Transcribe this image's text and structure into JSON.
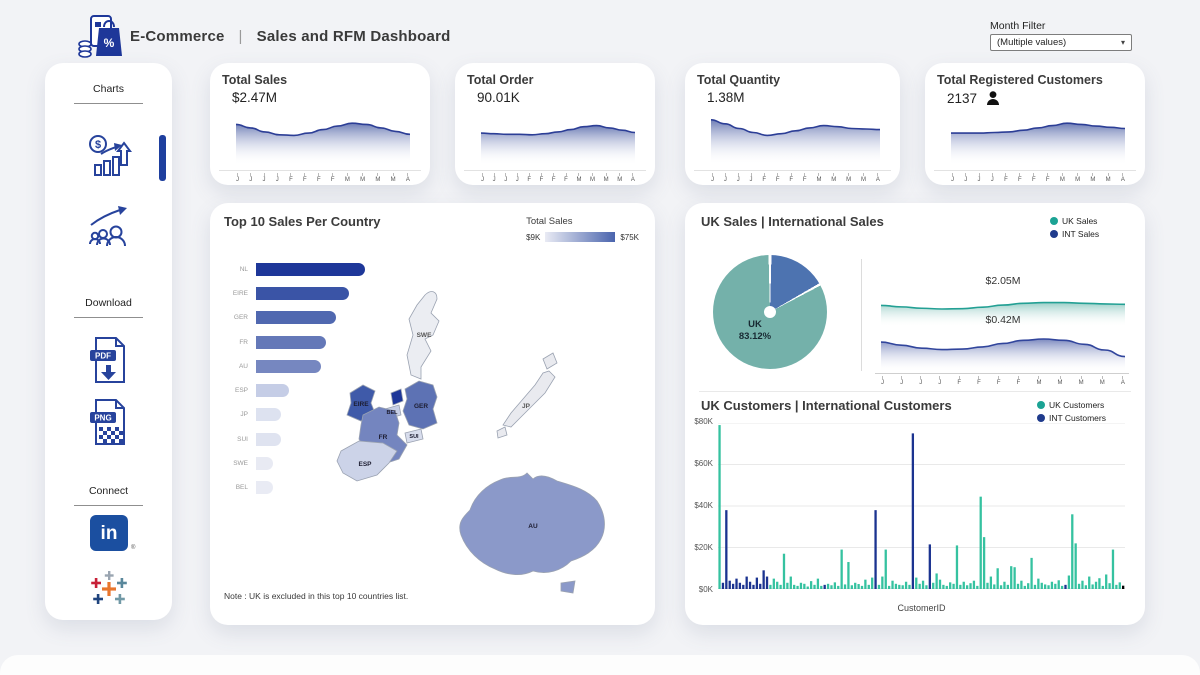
{
  "header": {
    "brand": "E-Commerce",
    "divider": "|",
    "title": "Sales and RFM Dashboard",
    "logo_percent": "%",
    "month_filter": {
      "label": "Month Filter",
      "value": "(Multiple values)",
      "arrow": "▾"
    }
  },
  "sidebar": {
    "charts_section": "Charts",
    "download_section": "Download",
    "connect_section": "Connect",
    "pdf_label": "PDF",
    "png_label": "PNG",
    "linkedin_text": "in",
    "linkedin_reg": "®"
  },
  "kpis": [
    {
      "title": "Total Sales",
      "value": "$2.47M"
    },
    {
      "title": "Total Order",
      "value": "90.01K"
    },
    {
      "title": "Total Quantity",
      "value": "1.38M"
    },
    {
      "title": "Total Registered Customers",
      "value": "2137"
    }
  ],
  "panels": {
    "top10": {
      "title": "Top 10 Sales Per Country",
      "legend_title": "Total Sales",
      "legend_min": "$9K",
      "legend_max": "$75K",
      "note": "Note : UK is excluded in this top 10 countries list."
    },
    "sales_split": {
      "title": "UK Sales | International Sales",
      "legend": [
        {
          "label": "UK Sales",
          "color": "#1ba394"
        },
        {
          "label": "INT Sales",
          "color": "#1f3b8c"
        }
      ],
      "uk_total": "$2.05M",
      "int_total": "$0.42M"
    },
    "customers_split": {
      "title": "UK Customers | International Customers",
      "legend": [
        {
          "label": "UK Customers",
          "color": "#1ba394"
        },
        {
          "label": "INT Customers",
          "color": "#1f3b8c"
        }
      ],
      "xlabel": "CustomerID"
    }
  },
  "chart_data": [
    {
      "id": "kpi_sparklines",
      "type": "area",
      "x_labels": [
        "J",
        "J",
        "J",
        "J",
        "F",
        "F",
        "F",
        "F",
        "M",
        "M",
        "M",
        "M",
        "A"
      ],
      "line_color": "#2c3e96",
      "fill_top_color": "#5e6fae",
      "values_unit": "relative-0-100",
      "series": [
        {
          "name": "Total Sales",
          "values": [
            70,
            64,
            57,
            52,
            51,
            55,
            61,
            67,
            72,
            70,
            64,
            58,
            53
          ]
        },
        {
          "name": "Total Order",
          "values": [
            55,
            54,
            53,
            53,
            52,
            54,
            57,
            61,
            66,
            68,
            64,
            60,
            56
          ]
        },
        {
          "name": "Total Quantity",
          "values": [
            78,
            71,
            63,
            56,
            51,
            54,
            59,
            64,
            68,
            66,
            63,
            62,
            61
          ]
        },
        {
          "name": "Total Registered Customers",
          "values": [
            55,
            55,
            55,
            56,
            57,
            60,
            64,
            68,
            72,
            70,
            67,
            65,
            63
          ]
        }
      ]
    },
    {
      "id": "top10_sales_per_country",
      "type": "bar",
      "orientation": "horizontal",
      "title": "Top 10 Sales Per Country",
      "categories": [
        "NL",
        "EIRE",
        "GER",
        "FR",
        "AU",
        "ESP",
        "JP",
        "SUI",
        "SWE",
        "BEL"
      ],
      "values_k_usd": [
        75,
        64,
        55,
        48,
        45,
        23,
        17.5,
        17,
        12,
        11.5
      ],
      "scale_min_k_usd": 9,
      "scale_max_k_usd": 75,
      "legend_gradient": [
        "#e9ebf4",
        "#4a64ad"
      ],
      "bar_colors": [
        "#1e3799",
        "#3a54a6",
        "#5068b0",
        "#6478b8",
        "#7687c0",
        "#c5cde6",
        "#dde2f0",
        "#dfe3f0",
        "#e8eaf3",
        "#e9ebf4"
      ],
      "note": "Note : UK is excluded in this top 10 countries list.",
      "map_regions": {
        "SWE": {
          "label": "SWE",
          "color": "#ebedf2"
        },
        "EIRE": {
          "label": "EIRE",
          "color": "#3f5aa9"
        },
        "NL": {
          "label": "",
          "color": "#1e3799"
        },
        "BEL": {
          "label": "BEL",
          "color": "#c7cfe6"
        },
        "GER": {
          "label": "GER",
          "color": "#5d72b4"
        },
        "SUI": {
          "label": "SUI",
          "color": "#d8dded"
        },
        "FR": {
          "label": "FR",
          "color": "#7485bf"
        },
        "ESP": {
          "label": "ESP",
          "color": "#ccd3e8"
        },
        "JP": {
          "label": "JP",
          "color": "#e9eaef"
        },
        "AU": {
          "label": "AU",
          "color": "#8b99c9"
        }
      }
    },
    {
      "id": "uk_vs_international_sales",
      "type": "pie",
      "title": "UK Sales | International Sales",
      "slices": [
        {
          "label": "UK",
          "pct": 83.12,
          "color": "#74b1aa"
        },
        {
          "label": "INT",
          "pct": 16.88,
          "color": "#4d73b0"
        }
      ],
      "pie_label": {
        "line1": "UK",
        "line2": "83.12%"
      },
      "x_labels": [
        "J",
        "J",
        "J",
        "J",
        "F",
        "F",
        "F",
        "F",
        "M",
        "M",
        "M",
        "M",
        "A"
      ],
      "areas": [
        {
          "name": "UK Sales",
          "total": "$2.05M",
          "line_color": "#23a094",
          "fill_top_color": "#8fcac2",
          "values": [
            60,
            56,
            52,
            50,
            51,
            55,
            61,
            66,
            68,
            68,
            66,
            64,
            63
          ]
        },
        {
          "name": "INT Sales",
          "total": "$0.42M",
          "line_color": "#31459c",
          "fill_top_color": "#6d7cb8",
          "values": [
            68,
            61,
            54,
            51,
            52,
            57,
            65,
            72,
            75,
            72,
            63,
            50,
            35
          ]
        }
      ]
    },
    {
      "id": "uk_vs_international_customers",
      "type": "bar",
      "title": "UK Customers | International Customers",
      "xlabel": "CustomerID",
      "ylim_k_usd": [
        0,
        80
      ],
      "yticks": [
        "$80K",
        "$60K",
        "$40K",
        "$20K",
        "$0K"
      ],
      "series_names": {
        "u": "UK Customers",
        "i": "INT Customers"
      },
      "series_colors": {
        "u": "#35c2a0",
        "i": "#1b3390"
      },
      "bar_series": "uiiiiiiiiiiiiiiuuuuuuuuuuuuuuuuiuuuuuuuuuuuuuuiuuuuuuuuuuiuuuuiuuuuuuuuuuuuuuuuuuuuuuuuuuuuuuuuuuuuuuuiuuuuuuuuuuuuuuuu",
      "values_k_usd": [
        79,
        3,
        38,
        4,
        2.5,
        5,
        3,
        2,
        6,
        3.5,
        2,
        5.5,
        2.5,
        9,
        6,
        2,
        5,
        3.5,
        2,
        17,
        3,
        6,
        2,
        1.5,
        3,
        2.5,
        1.2,
        3.8,
        2,
        5,
        1.5,
        2,
        2.5,
        1.8,
        3.2,
        1.5,
        19,
        2.2,
        13,
        1.8,
        3,
        2.4,
        1.5,
        4.5,
        2,
        5.5,
        38,
        2,
        6,
        19,
        1.5,
        4,
        2.5,
        2,
        1.8,
        3.5,
        2,
        75,
        5.5,
        2.5,
        4,
        1.8,
        21.5,
        3,
        7.5,
        4.5,
        2,
        1.5,
        3.2,
        2.5,
        21,
        2,
        3.5,
        1.8,
        2.8,
        4,
        1.5,
        44.5,
        25,
        3,
        6,
        2.2,
        10,
        1.8,
        3.5,
        2,
        11,
        10.5,
        2.5,
        4,
        1.5,
        2.8,
        15,
        2,
        5,
        3,
        2.2,
        1.8,
        3.5,
        2.5,
        4.2,
        1.5,
        2,
        6.5,
        36,
        22,
        2.5,
        4,
        1.8,
        6,
        2.2,
        3.5,
        5.2,
        1.5,
        7,
        2.8,
        19,
        2,
        3.2,
        1.6
      ]
    }
  ]
}
